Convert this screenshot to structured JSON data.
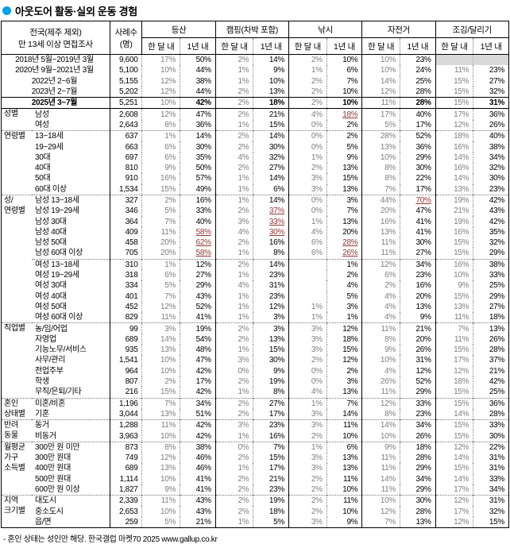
{
  "title": "아웃도어 활동·실외 운동 경험",
  "footnote": "- 혼인 상태는 성인만 해당. 한국갤럽 마켓70 2025 www.gallup.co.kr",
  "colors": {
    "accent_bullet": "#00A0E9",
    "highlight_red": "#953735",
    "missing_cell_gray": "#D9D9D9"
  },
  "header": {
    "scope_line1": "전국(제주 제외)",
    "scope_line2": "만 13세 이상 면접조사",
    "cases_line1": "사례수",
    "cases_line2": "(명)",
    "activity_groups": [
      "등산",
      "캠핑(차박 포함)",
      "낚시",
      "자전거",
      "조깅/달리기"
    ],
    "period_within_month": "한 달 내",
    "period_within_year": "1년 내"
  },
  "sections": [
    {
      "type": "period",
      "group": "",
      "rows": [
        {
          "label": "2018년 5월~2019년 3월",
          "cases": "9,600",
          "values": [
            "17%",
            "50%",
            "2%",
            "14%",
            "2%",
            "10%",
            "10%",
            "23%",
            null,
            null
          ]
        },
        {
          "label": "2020년 9월~2021년 3월",
          "cases": "5,100",
          "values": [
            "10%",
            "44%",
            "1%",
            "9%",
            "1%",
            "6%",
            "10%",
            "24%",
            "11%",
            "23%"
          ]
        },
        {
          "label": "2022년 2~6월",
          "cases": "5,155",
          "values": [
            "12%",
            "38%",
            "1%",
            "10%",
            "2%",
            "7%",
            "14%",
            "25%",
            "15%",
            "27%"
          ]
        },
        {
          "label": "2023년 2~7월",
          "cases": "5,202",
          "values": [
            "12%",
            "44%",
            "2%",
            "13%",
            "2%",
            "10%",
            "12%",
            "28%",
            "15%",
            "32%"
          ]
        },
        {
          "label": "2025년 3~7월",
          "cases": "5,251",
          "values": [
            "10%",
            "42%",
            "2%",
            "18%",
            "2%",
            "10%",
            "11%",
            "28%",
            "15%",
            "31%"
          ],
          "total": true
        }
      ]
    },
    {
      "type": "demo",
      "group": "성별",
      "rows": [
        {
          "label": "남성",
          "cases": "2,608",
          "values": [
            "12%",
            "47%",
            "2%",
            "21%",
            "4%",
            "18%",
            "17%",
            "40%",
            "17%",
            "36%"
          ],
          "red": [
            5
          ]
        },
        {
          "label": "여성",
          "cases": "2,643",
          "values": [
            "8%",
            "36%",
            "1%",
            "15%",
            "0%",
            "2%",
            "5%",
            "17%",
            "12%",
            "26%"
          ]
        }
      ]
    },
    {
      "type": "demo",
      "group": "연령별",
      "rows": [
        {
          "label": "13~18세",
          "cases": "637",
          "values": [
            "1%",
            "14%",
            "2%",
            "14%",
            "0%",
            "2%",
            "28%",
            "52%",
            "18%",
            "40%"
          ]
        },
        {
          "label": "19~29세",
          "cases": "663",
          "values": [
            "6%",
            "30%",
            "2%",
            "30%",
            "0%",
            "5%",
            "13%",
            "36%",
            "16%",
            "38%"
          ]
        },
        {
          "label": "30대",
          "cases": "697",
          "values": [
            "6%",
            "35%",
            "4%",
            "32%",
            "1%",
            "9%",
            "10%",
            "29%",
            "14%",
            "34%"
          ]
        },
        {
          "label": "40대",
          "cases": "810",
          "values": [
            "9%",
            "50%",
            "2%",
            "27%",
            "2%",
            "13%",
            "8%",
            "30%",
            "16%",
            "32%"
          ]
        },
        {
          "label": "50대",
          "cases": "910",
          "values": [
            "16%",
            "57%",
            "1%",
            "14%",
            "3%",
            "15%",
            "8%",
            "22%",
            "14%",
            "30%"
          ]
        },
        {
          "label": "60대 이상",
          "cases": "1,534",
          "values": [
            "15%",
            "49%",
            "1%",
            "6%",
            "3%",
            "13%",
            "7%",
            "17%",
            "13%",
            "23%"
          ]
        }
      ]
    },
    {
      "type": "demo",
      "group": "성/\n연령별",
      "rows": [
        {
          "label": "남성 13~18세",
          "cases": "327",
          "values": [
            "2%",
            "16%",
            "1%",
            "14%",
            "0%",
            "3%",
            "44%",
            "70%",
            "19%",
            "42%"
          ],
          "red": [
            7
          ]
        },
        {
          "label": "남성 19~29세",
          "cases": "346",
          "values": [
            "5%",
            "33%",
            "2%",
            "37%",
            "0%",
            "7%",
            "20%",
            "47%",
            "21%",
            "43%"
          ],
          "red": [
            3
          ]
        },
        {
          "label": "남성 30대",
          "cases": "364",
          "values": [
            "7%",
            "40%",
            "3%",
            "33%",
            "1%",
            "13%",
            "16%",
            "41%",
            "19%",
            "42%"
          ],
          "red": [
            3
          ]
        },
        {
          "label": "남성 40대",
          "cases": "409",
          "values": [
            "11%",
            "58%",
            "4%",
            "30%",
            "4%",
            "20%",
            "13%",
            "41%",
            "16%",
            "35%"
          ],
          "red": [
            1,
            3
          ]
        },
        {
          "label": "남성 50대",
          "cases": "458",
          "values": [
            "20%",
            "62%",
            "2%",
            "16%",
            "6%",
            "28%",
            "11%",
            "30%",
            "15%",
            "32%"
          ],
          "red": [
            1,
            5
          ]
        },
        {
          "label": "남성 60대 이상",
          "cases": "705",
          "values": [
            "20%",
            "58%",
            "1%",
            "8%",
            "6%",
            "26%",
            "11%",
            "27%",
            "15%",
            "29%"
          ],
          "red": [
            1,
            5
          ]
        },
        {
          "label": "여성 13~18세",
          "cases": "310",
          "values": [
            "1%",
            "12%",
            "2%",
            "14%",
            "",
            "1%",
            "12%",
            "34%",
            "16%",
            "38%"
          ],
          "sep": true
        },
        {
          "label": "여성 19~29세",
          "cases": "318",
          "values": [
            "6%",
            "27%",
            "1%",
            "23%",
            "",
            "2%",
            "6%",
            "23%",
            "10%",
            "33%"
          ]
        },
        {
          "label": "여성 30대",
          "cases": "334",
          "values": [
            "5%",
            "29%",
            "4%",
            "31%",
            "",
            "4%",
            "2%",
            "16%",
            "9%",
            "25%"
          ]
        },
        {
          "label": "여성 40대",
          "cases": "401",
          "values": [
            "7%",
            "43%",
            "1%",
            "23%",
            "",
            "5%",
            "4%",
            "20%",
            "15%",
            "29%"
          ]
        },
        {
          "label": "여성 50대",
          "cases": "452",
          "values": [
            "12%",
            "52%",
            "1%",
            "12%",
            "1%",
            "3%",
            "4%",
            "13%",
            "13%",
            "27%"
          ]
        },
        {
          "label": "여성 60대 이상",
          "cases": "829",
          "values": [
            "11%",
            "41%",
            "1%",
            "3%",
            "1%",
            "1%",
            "4%",
            "9%",
            "11%",
            "18%"
          ]
        }
      ]
    },
    {
      "type": "demo",
      "group": "직업별",
      "rows": [
        {
          "label": "농/임/어업",
          "cases": "99",
          "values": [
            "3%",
            "19%",
            "2%",
            "3%",
            "3%",
            "12%",
            "11%",
            "21%",
            "7%",
            "13%"
          ]
        },
        {
          "label": "자영업",
          "cases": "689",
          "values": [
            "14%",
            "54%",
            "2%",
            "13%",
            "3%",
            "18%",
            "8%",
            "20%",
            "11%",
            "26%"
          ]
        },
        {
          "label": "기능노무/서비스",
          "cases": "935",
          "values": [
            "13%",
            "48%",
            "1%",
            "15%",
            "3%",
            "15%",
            "9%",
            "26%",
            "15%",
            "28%"
          ]
        },
        {
          "label": "사무/관리",
          "cases": "1,541",
          "values": [
            "10%",
            "47%",
            "3%",
            "30%",
            "2%",
            "12%",
            "10%",
            "31%",
            "17%",
            "37%"
          ]
        },
        {
          "label": "전업주부",
          "cases": "964",
          "values": [
            "10%",
            "42%",
            "0%",
            "9%",
            "0%",
            "2%",
            "4%",
            "12%",
            "12%",
            "21%"
          ]
        },
        {
          "label": "학생",
          "cases": "807",
          "values": [
            "2%",
            "17%",
            "2%",
            "19%",
            "0%",
            "3%",
            "26%",
            "52%",
            "18%",
            "42%"
          ]
        },
        {
          "label": "무직/은퇴/기타",
          "cases": "216",
          "values": [
            "15%",
            "42%",
            "1%",
            "8%",
            "4%",
            "13%",
            "11%",
            "29%",
            "15%",
            "25%"
          ]
        }
      ]
    },
    {
      "type": "demo",
      "group": "혼인\n상태별",
      "rows": [
        {
          "label": "미혼/비혼",
          "cases": "1,196",
          "values": [
            "7%",
            "34%",
            "2%",
            "27%",
            "1%",
            "7%",
            "12%",
            "33%",
            "15%",
            "36%"
          ]
        },
        {
          "label": "기혼",
          "cases": "3,044",
          "values": [
            "13%",
            "51%",
            "2%",
            "17%",
            "3%",
            "14%",
            "8%",
            "23%",
            "14%",
            "28%"
          ]
        }
      ]
    },
    {
      "type": "demo",
      "group": "반려\n동물",
      "rows": [
        {
          "label": "동거",
          "cases": "1,288",
          "values": [
            "11%",
            "42%",
            "3%",
            "23%",
            "3%",
            "11%",
            "14%",
            "34%",
            "15%",
            "33%"
          ]
        },
        {
          "label": "비동거",
          "cases": "3,963",
          "values": [
            "10%",
            "42%",
            "1%",
            "16%",
            "2%",
            "10%",
            "10%",
            "26%",
            "15%",
            "30%"
          ]
        }
      ]
    },
    {
      "type": "demo",
      "group": "월평균\n가구\n소득별",
      "rows": [
        {
          "label": "300만 원 미만",
          "cases": "873",
          "values": [
            "8%",
            "38%",
            "0%",
            "7%",
            "1%",
            "6%",
            "9%",
            "18%",
            "12%",
            "22%"
          ]
        },
        {
          "label": "300만 원대",
          "cases": "749",
          "values": [
            "12%",
            "46%",
            "2%",
            "15%",
            "3%",
            "13%",
            "11%",
            "28%",
            "14%",
            "31%"
          ]
        },
        {
          "label": "400만 원대",
          "cases": "689",
          "values": [
            "13%",
            "46%",
            "1%",
            "17%",
            "3%",
            "13%",
            "11%",
            "29%",
            "15%",
            "31%"
          ]
        },
        {
          "label": "500만 원대",
          "cases": "1,114",
          "values": [
            "10%",
            "41%",
            "2%",
            "21%",
            "2%",
            "11%",
            "14%",
            "34%",
            "14%",
            "33%"
          ]
        },
        {
          "label": "600만 원 이상",
          "cases": "1,827",
          "values": [
            "9%",
            "41%",
            "2%",
            "23%",
            "2%",
            "10%",
            "11%",
            "29%",
            "17%",
            "34%"
          ]
        }
      ]
    },
    {
      "type": "demo",
      "group": "지역\n크기별",
      "rows": [
        {
          "label": "대도시",
          "cases": "2,339",
          "values": [
            "11%",
            "43%",
            "2%",
            "19%",
            "2%",
            "11%",
            "10%",
            "30%",
            "12%",
            "31%"
          ]
        },
        {
          "label": "중소도시",
          "cases": "2,653",
          "values": [
            "10%",
            "43%",
            "2%",
            "18%",
            "2%",
            "10%",
            "12%",
            "28%",
            "17%",
            "32%"
          ]
        },
        {
          "label": "읍/면",
          "cases": "259",
          "values": [
            "5%",
            "21%",
            "1%",
            "5%",
            "3%",
            "9%",
            "7%",
            "13%",
            "12%",
            "15%"
          ]
        }
      ]
    }
  ]
}
